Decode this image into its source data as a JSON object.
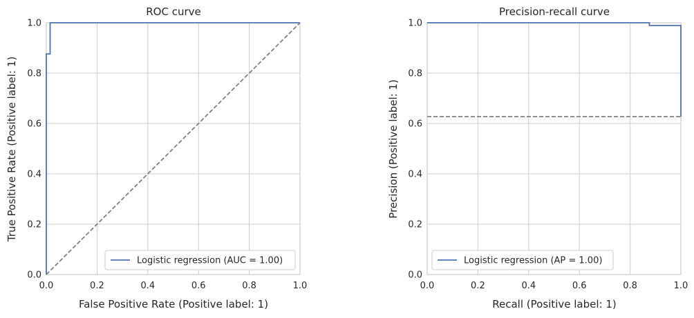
{
  "chart_data": [
    {
      "type": "line",
      "title": "ROC curve",
      "xlabel": "False Positive Rate (Positive label: 1)",
      "ylabel": "True Positive Rate (Positive label: 1)",
      "xlim": [
        0,
        1
      ],
      "ylim": [
        0,
        1
      ],
      "xticks": [
        "0.0",
        "0.2",
        "0.4",
        "0.6",
        "0.8",
        "1.0"
      ],
      "yticks": [
        "0.0",
        "0.2",
        "0.4",
        "0.6",
        "0.8",
        "1.0"
      ],
      "grid": true,
      "legend_position": "lower-right",
      "series": [
        {
          "name": "Logistic regression (AUC = 1.00)",
          "style": "solid",
          "color": "#4c72b0",
          "x": [
            0.0,
            0.0,
            0.0,
            0.015,
            0.015,
            1.0
          ],
          "y": [
            0.0,
            0.005,
            0.876,
            0.876,
            1.0,
            1.0
          ]
        },
        {
          "style": "dashed",
          "color": "#7f7f7f",
          "x": [
            0,
            1
          ],
          "y": [
            0,
            1
          ]
        }
      ]
    },
    {
      "type": "line",
      "title": "Precision-recall curve",
      "xlabel": "Recall (Positive label: 1)",
      "ylabel": "Precision (Positive label: 1)",
      "xlim": [
        0,
        1
      ],
      "ylim": [
        0,
        1
      ],
      "xticks": [
        "0.0",
        "0.2",
        "0.4",
        "0.6",
        "0.8",
        "1.0"
      ],
      "yticks": [
        "0.0",
        "0.2",
        "0.4",
        "0.6",
        "0.8",
        "1.0"
      ],
      "grid": true,
      "legend_position": "lower-left",
      "series": [
        {
          "name": "Logistic regression (AP = 1.00)",
          "style": "solid",
          "color": "#4c72b0",
          "x": [
            0.0,
            0.876,
            0.876,
            1.0,
            1.0
          ],
          "y": [
            1.0,
            1.0,
            0.989,
            0.989,
            0.627
          ]
        },
        {
          "style": "dashed",
          "color": "#7f7f7f",
          "x": [
            0,
            1
          ],
          "y": [
            0.627,
            0.627
          ]
        }
      ]
    }
  ]
}
